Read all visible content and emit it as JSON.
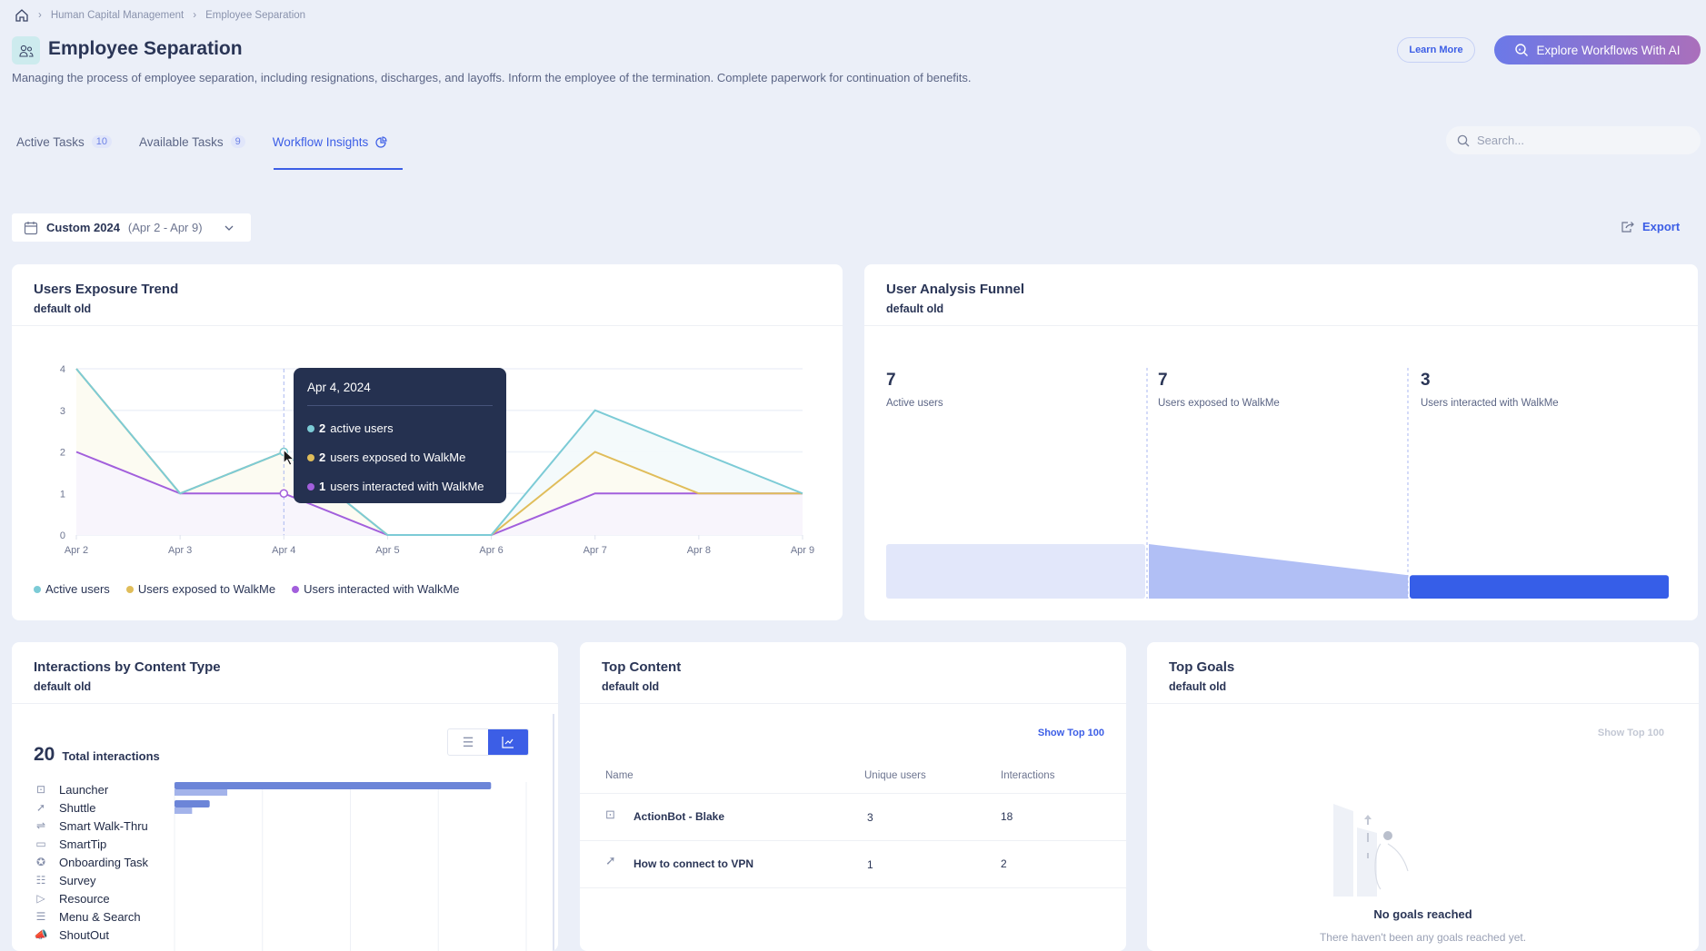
{
  "breadcrumb": [
    "Human Capital Management",
    "Employee Separation"
  ],
  "header": {
    "title": "Employee Separation",
    "description": "Managing the process of employee separation, including resignations, discharges, and layoffs. Inform the employee of the termination. Complete paperwork for continuation of benefits.",
    "learn_more": "Learn More",
    "explore_ai": "Explore Workflows With AI"
  },
  "tabs": [
    {
      "label": "Active Tasks",
      "count": "10"
    },
    {
      "label": "Available Tasks",
      "count": "9"
    },
    {
      "label": "Workflow Insights"
    }
  ],
  "search": {
    "placeholder": "Search..."
  },
  "date_filter": {
    "label": "Custom 2024",
    "range": "(Apr 2 - Apr 9)"
  },
  "export_label": "Export",
  "colors": {
    "accent": "#3c5ee6",
    "active": "#7ccbd6",
    "exposed": "#e0bd5a",
    "interacted": "#a25fdc"
  },
  "exposure_card": {
    "title": "Users Exposure Trend",
    "subtitle": "default old"
  },
  "tooltip": {
    "date": "Apr 4, 2024",
    "rows": [
      {
        "value": "2",
        "text": "active users"
      },
      {
        "value": "2",
        "text": "users exposed to WalkMe"
      },
      {
        "value": "1",
        "text": "users interacted with WalkMe"
      }
    ]
  },
  "funnel_card": {
    "title": "User Analysis Funnel",
    "subtitle": "default old",
    "stages": [
      {
        "value": 7,
        "label": "Active users"
      },
      {
        "value": 7,
        "label": "Users exposed to WalkMe"
      },
      {
        "value": 3,
        "label": "Users interacted with WalkMe"
      }
    ]
  },
  "content_type_card": {
    "title": "Interactions by Content Type",
    "subtitle": "default old",
    "total": "20",
    "total_label": "Total interactions",
    "items": [
      {
        "label": "Launcher",
        "icon": "launcher-icon",
        "interactions": 18,
        "users": 3
      },
      {
        "label": "Shuttle",
        "icon": "shuttle-icon",
        "interactions": 2,
        "users": 1
      },
      {
        "label": "Smart Walk-Thru",
        "icon": "walkthru-icon",
        "interactions": 0,
        "users": 0
      },
      {
        "label": "SmartTip",
        "icon": "smarttip-icon",
        "interactions": 0,
        "users": 0
      },
      {
        "label": "Onboarding Task",
        "icon": "onboarding-icon",
        "interactions": 0,
        "users": 0
      },
      {
        "label": "Survey",
        "icon": "survey-icon",
        "interactions": 0,
        "users": 0
      },
      {
        "label": "Resource",
        "icon": "resource-icon",
        "interactions": 0,
        "users": 0
      },
      {
        "label": "Menu & Search",
        "icon": "menu-icon",
        "interactions": 0,
        "users": 0
      },
      {
        "label": "ShoutOut",
        "icon": "shoutout-icon",
        "interactions": 0,
        "users": 0
      }
    ]
  },
  "top_content_card": {
    "title": "Top Content",
    "subtitle": "default old",
    "show_top": "Show Top 100",
    "columns": [
      "Name",
      "Unique users",
      "Interactions"
    ],
    "rows": [
      {
        "name": "ActionBot - Blake",
        "icon": "launcher-icon",
        "users": "3",
        "interactions": "18"
      },
      {
        "name": "How to connect to VPN",
        "icon": "shuttle-icon",
        "users": "1",
        "interactions": "2"
      }
    ]
  },
  "top_goals_card": {
    "title": "Top Goals",
    "subtitle": "default old",
    "show_top": "Show Top 100",
    "empty_title": "No goals reached",
    "empty_text": "There haven't been any goals reached yet."
  },
  "chart_data": [
    {
      "type": "area",
      "categories": [
        "Apr 2",
        "Apr 3",
        "Apr 4",
        "Apr 5",
        "Apr 6",
        "Apr 7",
        "Apr 8",
        "Apr 9"
      ],
      "ylim": [
        0,
        4
      ],
      "yticks": [
        "0",
        "1",
        "2",
        "3",
        "4"
      ],
      "grid": true,
      "legend": "bottom-left",
      "series": [
        {
          "name": "Active users",
          "values": [
            4,
            1,
            2,
            0,
            0,
            3,
            2,
            1
          ]
        },
        {
          "name": "Users exposed to WalkMe",
          "values": [
            4,
            1,
            2,
            0,
            0,
            2,
            1,
            1
          ]
        },
        {
          "name": "Users interacted with WalkMe",
          "values": [
            2,
            1,
            1,
            0,
            0,
            1,
            1,
            1
          ]
        }
      ]
    },
    {
      "type": "bar",
      "orientation": "horizontal",
      "categories": [
        "Launcher",
        "Shuttle",
        "Smart Walk-Thru",
        "SmartTip",
        "Onboarding Task",
        "Survey",
        "Resource",
        "Menu & Search",
        "ShoutOut"
      ],
      "xlim": [
        0,
        20
      ],
      "series": [
        {
          "values": [
            18,
            2,
            0,
            0,
            0,
            0,
            0,
            0,
            0
          ]
        },
        {
          "values": [
            3,
            1,
            0,
            0,
            0,
            0,
            0,
            0,
            0
          ]
        }
      ]
    }
  ]
}
